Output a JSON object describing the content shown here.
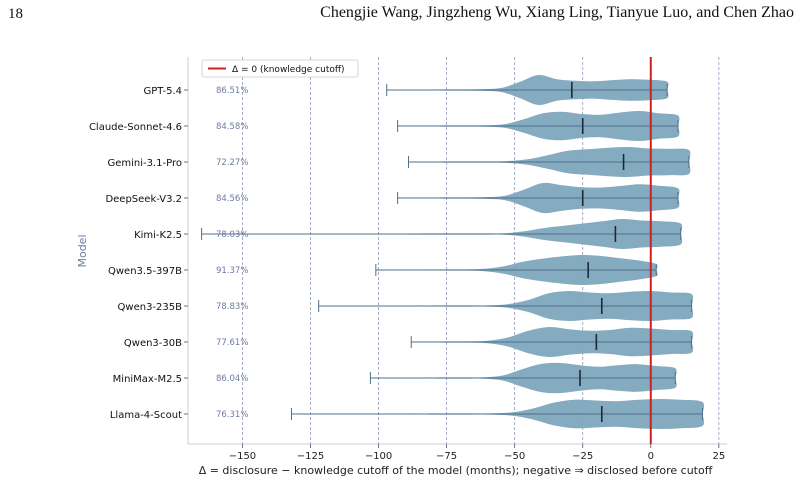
{
  "header": {
    "page_number": "18",
    "authors": "Chengjie Wang, Jingzheng Wu, Xiang Ling, Tianyue Luo, and Chen Zhao"
  },
  "chart_data": {
    "type": "violin",
    "orientation": "horizontal",
    "title": "",
    "xlabel": "Δ = disclosure − knowledge cutoff of the model (months); negative ⇒ disclosed before cutoff",
    "ylabel": "Model",
    "xlim": [
      -170,
      28
    ],
    "xticks": [
      -150,
      -125,
      -100,
      -75,
      -50,
      -25,
      0,
      25
    ],
    "xtick_labels": [
      "−150",
      "−125",
      "−100",
      "−75",
      "−50",
      "−25",
      "0",
      "25"
    ],
    "grid": "vertical dashed",
    "legend": {
      "position": "top-left",
      "entries": [
        "Δ = 0 (knowledge cutoff)"
      ]
    },
    "reference_line": {
      "x": 0,
      "color": "#cc2222",
      "label": "Δ = 0 (knowledge cutoff)"
    },
    "violin_color": "#7ea7be",
    "annotation_color": "#6e7ba3",
    "models": [
      {
        "name": "GPT-5.4",
        "pct_label": "86.51%",
        "min": -97,
        "max": 6,
        "median": -29,
        "density": [
          0.01,
          0.03,
          0.06,
          0.14,
          0.55,
          1.0,
          0.72,
          0.62,
          0.58,
          0.66,
          0.72,
          0.68,
          0.55
        ]
      },
      {
        "name": "Claude-Sonnet-4.6",
        "pct_label": "84.58%",
        "min": -93,
        "max": 10,
        "median": -25,
        "density": [
          0.01,
          0.02,
          0.05,
          0.12,
          0.45,
          0.85,
          0.95,
          0.8,
          0.75,
          0.9,
          1.0,
          0.85,
          0.7
        ]
      },
      {
        "name": "Gemini-3.1-Pro",
        "pct_label": "72.27%",
        "min": -89,
        "max": 14,
        "median": -10,
        "density": [
          0.01,
          0.02,
          0.03,
          0.06,
          0.18,
          0.45,
          0.75,
          0.85,
          0.95,
          1.0,
          0.9,
          0.88,
          0.8
        ]
      },
      {
        "name": "DeepSeek-V3.2",
        "pct_label": "84.56%",
        "min": -93,
        "max": 10,
        "median": -25,
        "density": [
          0.01,
          0.02,
          0.06,
          0.14,
          0.55,
          1.0,
          0.85,
          0.72,
          0.7,
          0.8,
          0.92,
          0.82,
          0.65
        ]
      },
      {
        "name": "Kimi-K2.5",
        "pct_label": "78.03%",
        "min": -165,
        "max": 11,
        "median": -13,
        "density": [
          0.01,
          0.01,
          0.02,
          0.05,
          0.18,
          0.4,
          0.55,
          0.7,
          0.85,
          1.0,
          0.9,
          0.85,
          0.7
        ]
      },
      {
        "name": "Qwen3.5-397B",
        "pct_label": "91.37%",
        "min": -101,
        "max": 2,
        "median": -23,
        "density": [
          0.01,
          0.03,
          0.08,
          0.25,
          0.55,
          0.75,
          0.9,
          1.0,
          0.95,
          0.8,
          0.65,
          0.4
        ]
      },
      {
        "name": "Qwen3-235B",
        "pct_label": "78.83%",
        "min": -122,
        "max": 15,
        "median": -18,
        "density": [
          0.01,
          0.02,
          0.04,
          0.12,
          0.4,
          0.85,
          1.0,
          0.9,
          0.85,
          0.95,
          1.0,
          0.9,
          0.8
        ]
      },
      {
        "name": "Qwen3-30B",
        "pct_label": "77.61%",
        "min": -88,
        "max": 15,
        "median": -20,
        "density": [
          0.01,
          0.03,
          0.08,
          0.3,
          0.75,
          1.0,
          0.85,
          0.75,
          0.8,
          0.95,
          0.9,
          0.8,
          0.72
        ]
      },
      {
        "name": "MiniMax-M2.5",
        "pct_label": "86.04%",
        "min": -103,
        "max": 9,
        "median": -26,
        "density": [
          0.01,
          0.02,
          0.05,
          0.18,
          0.6,
          0.95,
          1.0,
          0.85,
          0.75,
          0.85,
          0.92,
          0.8,
          0.65
        ]
      },
      {
        "name": "Llama-4-Scout",
        "pct_label": "76.31%",
        "min": -132,
        "max": 19,
        "median": -18,
        "density": [
          0.01,
          0.02,
          0.03,
          0.1,
          0.35,
          0.75,
          0.95,
          0.9,
          0.85,
          0.95,
          1.0,
          0.95,
          0.8
        ]
      }
    ]
  }
}
